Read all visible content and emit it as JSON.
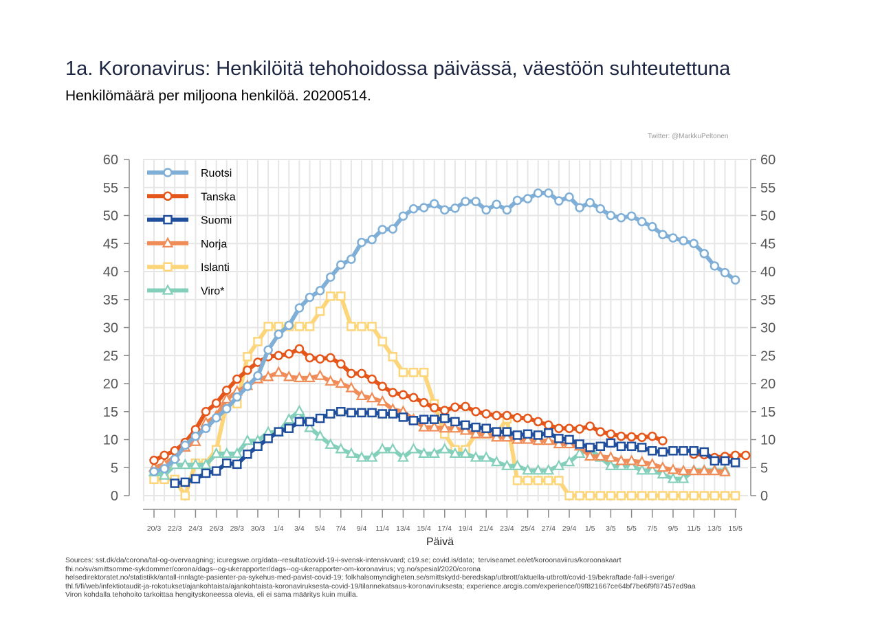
{
  "header": {
    "title": "1a. Koronavirus: Henkilöitä tehohoidossa päivässä, väestöön suhteutettuna",
    "subtitle": "Henkilömäärä per miljoona henkilöä. 20200514.",
    "credit": "Twitter: @MarkkuPeltonen"
  },
  "footer": {
    "sources": "Sources: sst.dk/da/corona/tal-og-overvaagning; icuregswe.org/data--resultat/covid-19-i-svensk-intensivvard; c19.se; covid.is/data;  terviseamet.ee/et/koroonaviirus/koroonakaart\nfhi.no/sv/smittsomme-sykdommer/corona/dags--og-ukerapporter/dags--og-ukerapporter-om-koronavirus; vg.no/spesial/2020/corona\nhelsedirektoratet.no/statistikk/antall-innlagte-pasienter-pa-sykehus-med-pavist-covid-19; folkhalsomyndigheten.se/smittskydd-beredskap/utbrott/aktuella-utbrott/covid-19/bekraftade-fall-i-sverige/\nthl.fi/fi/web/infektiotaudit-ja-rokotukset/ajankohtaista/ajankohtaista-koronaviruksesta-covid-19/tilannekatsaus-koronaviruksesta; experience.arcgis.com/experience/09f821667ce64bf7be6f9f87457ed9aa\nViron kohdalla tehohoito tarkoittaa hengityskoneessa olevia, eli ei sama määritys kuin muilla."
  },
  "chart_data": {
    "type": "line",
    "title": "1a. Koronavirus: Henkilöitä tehohoidossa päivässä, väestöön suhteutettuna",
    "subtitle": "Henkilömäärä per miljoona henkilöä. 20200514.",
    "xlabel": "Päivä",
    "ylabel": "",
    "ylim": [
      0,
      60
    ],
    "yticks": [
      0,
      5,
      10,
      15,
      20,
      25,
      30,
      35,
      40,
      45,
      50,
      55,
      60
    ],
    "x_start": "20/3",
    "xlim_days": [
      -1,
      56
    ],
    "xticks": [
      "20/3",
      "22/3",
      "24/3",
      "26/3",
      "28/3",
      "30/3",
      "1/4",
      "3/4",
      "5/4",
      "7/4",
      "9/4",
      "11/4",
      "13/4",
      "15/4",
      "17/4",
      "19/4",
      "21/4",
      "23/4",
      "25/4",
      "27/4",
      "29/4",
      "1/5",
      "3/5",
      "5/5",
      "7/5",
      "9/5",
      "11/5",
      "13/5",
      "15/5"
    ],
    "grid": true,
    "legend": "top-left",
    "series": [
      {
        "name": "Ruotsi",
        "color": "#7fafd6",
        "marker": "circle",
        "start": 0,
        "values": [
          4.3,
          4.8,
          6.5,
          9,
          10.6,
          12,
          13.9,
          15.5,
          17.6,
          19.5,
          21.4,
          26,
          28.8,
          30.4,
          33.5,
          35.4,
          36.6,
          39,
          41.2,
          42.2,
          45.2,
          45.7,
          47.5,
          47.6,
          49.9,
          51.2,
          51.4,
          52.1,
          51,
          51.3,
          52.5,
          52.5,
          51,
          52,
          51,
          52.7,
          53,
          54,
          54,
          52.6,
          53.3,
          51.4,
          52.3,
          51.2,
          50,
          49.6,
          49.9,
          48.9,
          48,
          46.6,
          46,
          45.5,
          45,
          43.2,
          41,
          39.8,
          38.5
        ]
      },
      {
        "name": "Tanska",
        "color": "#e5561b",
        "marker": "circle",
        "start": 0,
        "values": [
          6.3,
          7.2,
          8,
          9.5,
          11.8,
          15,
          16.5,
          18.8,
          20.8,
          22.4,
          23.8,
          24.8,
          25,
          25.3,
          26.2,
          24.6,
          24.4,
          24.6,
          23.5,
          21.8,
          21.8,
          20.8,
          19.5,
          18.4,
          18,
          17.5,
          16.6,
          15.7,
          15.2,
          15.8,
          15.9,
          15,
          14.6,
          14.3,
          14.3,
          13.9,
          13.8,
          13.2,
          12.6,
          12,
          12,
          11.9,
          12.4,
          11.4,
          11,
          10.6,
          10.5,
          10.4,
          10.6,
          9.8,
          null,
          null,
          7.4,
          7.3,
          6.8,
          7,
          7.2,
          7.2
        ]
      },
      {
        "name": "Suomi",
        "color": "#1f4e9c",
        "marker": "square",
        "start": 2,
        "values": [
          2.2,
          2.4,
          3,
          4,
          4.4,
          5.8,
          5.6,
          7.4,
          8.8,
          10.2,
          11.4,
          12,
          13.2,
          13.2,
          13.8,
          14.6,
          15,
          14.8,
          14.8,
          14.8,
          14.6,
          14.6,
          14,
          13.4,
          13.6,
          13.6,
          13.8,
          13.2,
          12.6,
          12.2,
          12,
          11.4,
          11.4,
          10.8,
          11,
          10.8,
          11.2,
          10.2,
          10,
          9.2,
          8.6,
          8.8,
          9.4,
          8.8,
          8.8,
          8.6,
          8,
          7.8,
          8,
          8,
          8,
          7.8,
          6.2,
          6.2,
          5.9
        ]
      },
      {
        "name": "Norja",
        "color": "#f08c57",
        "marker": "triangle",
        "start": 0,
        "values": [
          5,
          5.6,
          7,
          8.6,
          9.6,
          13,
          14.2,
          17.2,
          18.6,
          19.6,
          20.8,
          21.2,
          22,
          21.2,
          21,
          21,
          21.4,
          20.4,
          20,
          19.2,
          17.8,
          17.4,
          16.8,
          15.4,
          15,
          13.6,
          12.2,
          12.2,
          12,
          12,
          11.6,
          11,
          11,
          10.4,
          10.4,
          10,
          10,
          9.8,
          9.8,
          9.2,
          9.2,
          8.8,
          7,
          7,
          6.8,
          6.2,
          6.2,
          6,
          5.6,
          5,
          4.6,
          4.4,
          4.4,
          4.4,
          4.4,
          4.2
        ]
      },
      {
        "name": "Islanti",
        "color": "#fdd57a",
        "marker": "square",
        "start": 0,
        "values": [
          2.9,
          2.9,
          2.9,
          0,
          5.8,
          5.8,
          8.2,
          16.4,
          16.4,
          24.8,
          27.5,
          30.2,
          30.2,
          30.2,
          30.2,
          30.2,
          32.9,
          35.6,
          35.6,
          30.2,
          30.2,
          30.2,
          27.5,
          24.8,
          22,
          22,
          22,
          16.4,
          11,
          8.2,
          8.2,
          11,
          11,
          11,
          13.7,
          2.7,
          2.7,
          2.7,
          2.7,
          2.7,
          0,
          0,
          0,
          0,
          0,
          0,
          0,
          0,
          0,
          0,
          0,
          0,
          0,
          0,
          0,
          0,
          0
        ]
      },
      {
        "name": "Viro*",
        "color": "#84cfba",
        "marker": "triangle",
        "start": 0,
        "values": [
          4.2,
          3.6,
          5.5,
          5.5,
          5.5,
          5.5,
          7.5,
          7.5,
          7.5,
          9.8,
          9.8,
          11.3,
          11.3,
          13.6,
          15.1,
          12.1,
          10.6,
          9.1,
          8.3,
          7.5,
          6.8,
          6.8,
          8.3,
          8.3,
          6.8,
          8.3,
          7.5,
          7.5,
          8.3,
          7.5,
          7.5,
          6.8,
          6.8,
          6,
          5.3,
          5.3,
          4.5,
          4.5,
          4.5,
          5.3,
          6,
          7.5,
          8.3,
          6.8,
          5.3,
          5.3,
          5.3,
          4.5,
          4.5,
          3.8,
          3,
          3,
          4.5,
          4.5,
          4.5,
          4.5
        ]
      }
    ]
  }
}
